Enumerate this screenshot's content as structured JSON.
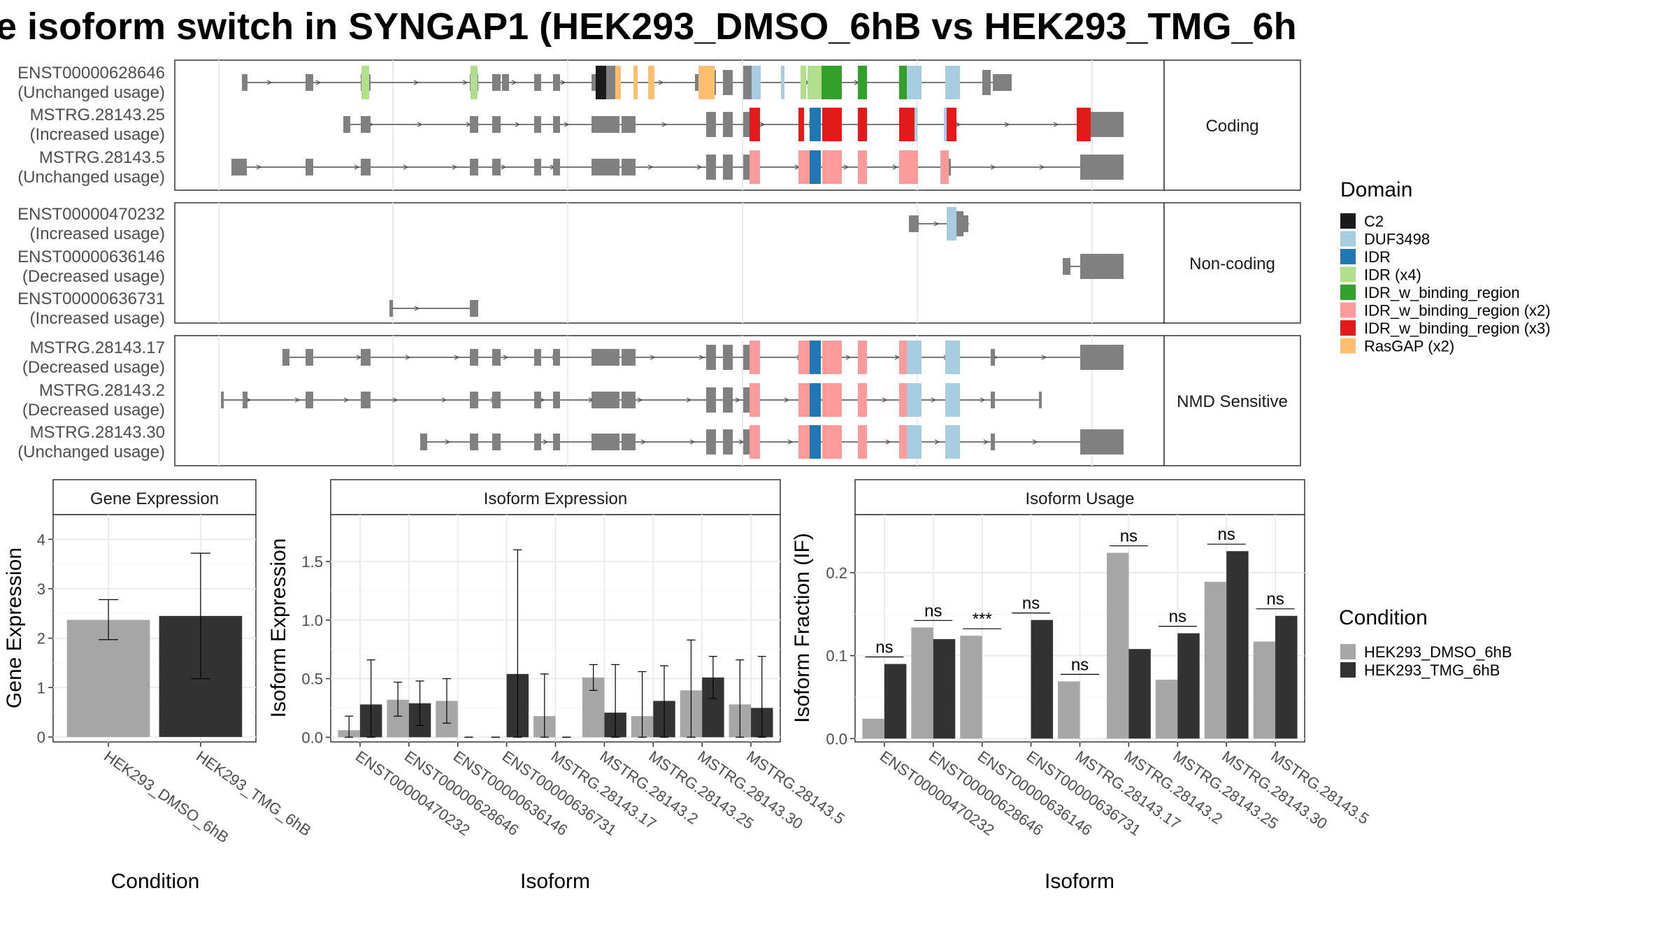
{
  "title": "e isoform switch in SYNGAP1 (HEK293_DMSO_6hB vs HEK293_TMG_6h",
  "colors": {
    "C2": "#1a1a1a",
    "DUF3498": "#a6cee3",
    "IDR": "#1f78b4",
    "IDR (x4)": "#b2df8a",
    "IDR_w_binding_region": "#33a02c",
    "IDR_w_binding_region (x2)": "#fb9a99",
    "IDR_w_binding_region (x3)": "#e31a1c",
    "RasGAP (x2)": "#fdbf6f",
    "exon": "#808080",
    "dmso": "#a6a6a6",
    "tmg": "#333333"
  },
  "structure": {
    "groups": [
      {
        "label": "Coding",
        "transcripts": [
          {
            "id": "ENST00000628646",
            "usage": "(Unchanged usage)"
          },
          {
            "id": "MSTRG.28143.25",
            "usage": "(Increased usage)"
          },
          {
            "id": "MSTRG.28143.5",
            "usage": "(Unchanged usage)"
          }
        ]
      },
      {
        "label": "Non-coding",
        "transcripts": [
          {
            "id": "ENST00000470232",
            "usage": "(Increased usage)"
          },
          {
            "id": "ENST00000636146",
            "usage": "(Decreased usage)"
          },
          {
            "id": "ENST00000636731",
            "usage": "(Increased usage)"
          }
        ]
      },
      {
        "label": "NMD Sensitive",
        "transcripts": [
          {
            "id": "MSTRG.28143.17",
            "usage": "(Decreased usage)"
          },
          {
            "id": "MSTRG.28143.2",
            "usage": "(Decreased usage)"
          },
          {
            "id": "MSTRG.28143.30",
            "usage": "(Unchanged usage)"
          }
        ]
      }
    ]
  },
  "legend_domain": {
    "title": "Domain",
    "items": [
      "C2",
      "DUF3498",
      "IDR",
      "IDR (x4)",
      "IDR_w_binding_region",
      "IDR_w_binding_region (x2)",
      "IDR_w_binding_region (x3)",
      "RasGAP (x2)"
    ]
  },
  "legend_condition": {
    "title": "Condition",
    "items": [
      "HEK293_DMSO_6hB",
      "HEK293_TMG_6hB"
    ]
  },
  "chart_data": [
    {
      "type": "bar",
      "title": "Gene Expression",
      "xlabel": "Condition",
      "ylabel": "Gene Expression",
      "categories": [
        "HEK293_DMSO_6hB",
        "HEK293_TMG_6hB"
      ],
      "values": [
        2.37,
        2.45
      ],
      "error_low": [
        1.97,
        1.18
      ],
      "error_high": [
        2.78,
        3.72
      ],
      "ylim": [
        -0.1,
        4.5
      ],
      "yticks": [
        0,
        1,
        2,
        3,
        4
      ],
      "grid": true
    },
    {
      "type": "bar",
      "title": "Isoform Expression",
      "xlabel": "Isoform",
      "ylabel": "Isoform Expression",
      "categories": [
        "ENST00000470232",
        "ENST00000628646",
        "ENST00000636146",
        "ENST00000636731",
        "MSTRG.28143.17",
        "MSTRG.28143.2",
        "MSTRG.28143.25",
        "MSTRG.28143.30",
        "MSTRG.28143.5"
      ],
      "series": [
        {
          "name": "HEK293_DMSO_6hB",
          "values": [
            0.06,
            0.32,
            0.31,
            0.0,
            0.18,
            0.51,
            0.18,
            0.4,
            0.28
          ],
          "err_low": [
            0.0,
            0.18,
            0.12,
            0.0,
            0.0,
            0.4,
            0.0,
            0.0,
            0.0
          ],
          "err_high": [
            0.18,
            0.47,
            0.5,
            0.0,
            0.54,
            0.62,
            0.56,
            0.83,
            0.66
          ]
        },
        {
          "name": "HEK293_TMG_6hB",
          "values": [
            0.28,
            0.29,
            0.0,
            0.54,
            0.0,
            0.21,
            0.31,
            0.51,
            0.25
          ],
          "err_low": [
            0.0,
            0.1,
            0.0,
            0.0,
            0.0,
            0.0,
            0.0,
            0.33,
            0.0
          ],
          "err_high": [
            0.66,
            0.48,
            0.0,
            1.6,
            0.0,
            0.62,
            0.61,
            0.69,
            0.69
          ]
        }
      ],
      "ylim": [
        -0.04,
        1.9
      ],
      "yticks": [
        0.0,
        0.5,
        1.0,
        1.5
      ],
      "ytick_labels": [
        "0.0",
        "0.5",
        "1.0",
        "1.5"
      ],
      "grid": true
    },
    {
      "type": "bar",
      "title": "Isoform Usage",
      "xlabel": "Isoform",
      "ylabel": "Isoform Fraction (IF)",
      "categories": [
        "ENST00000470232",
        "ENST00000628646",
        "ENST00000636146",
        "ENST00000636731",
        "MSTRG.28143.17",
        "MSTRG.28143.2",
        "MSTRG.28143.25",
        "MSTRG.28143.30",
        "MSTRG.28143.5"
      ],
      "series": [
        {
          "name": "HEK293_DMSO_6hB",
          "values": [
            0.024,
            0.134,
            0.124,
            0.0,
            0.069,
            0.224,
            0.071,
            0.189,
            0.117
          ]
        },
        {
          "name": "HEK293_TMG_6hB",
          "values": [
            0.09,
            0.12,
            0.0,
            0.143,
            0.0,
            0.108,
            0.127,
            0.226,
            0.148
          ]
        }
      ],
      "significance": [
        "ns",
        "ns",
        "***",
        "ns",
        "ns",
        "ns",
        "ns",
        "ns",
        "ns"
      ],
      "ylim": [
        -0.004,
        0.27
      ],
      "yticks": [
        0.0,
        0.1,
        0.2
      ],
      "ytick_labels": [
        "0.0",
        "0.1",
        "0.2"
      ],
      "grid": true
    }
  ]
}
